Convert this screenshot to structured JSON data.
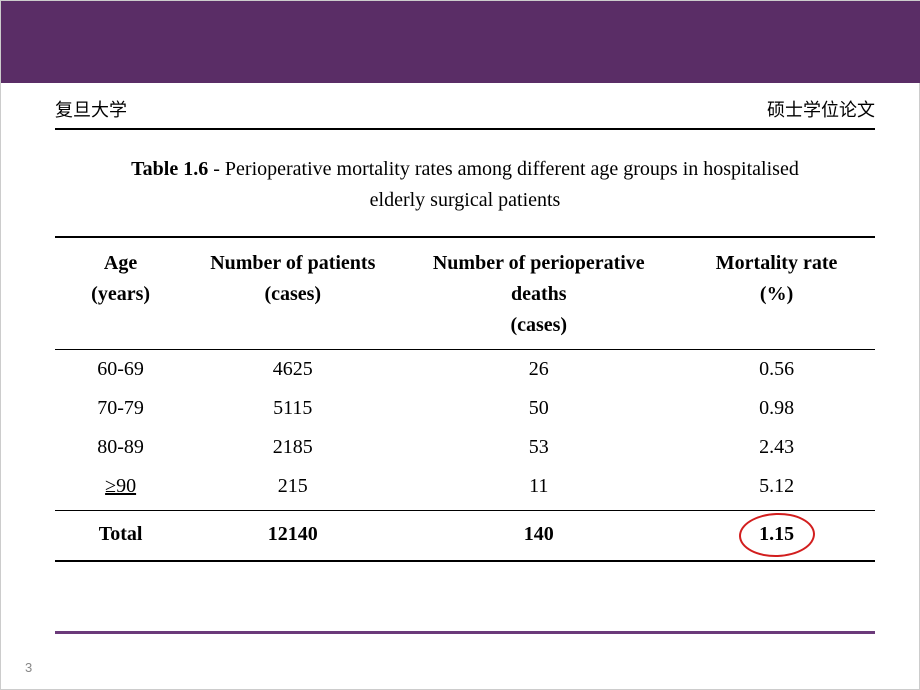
{
  "header": {
    "left": "复旦大学",
    "right": "硕士学位论文"
  },
  "caption": {
    "label": "Table 1.6",
    "sep": " - ",
    "text_line1": "Perioperative mortality rates among different age groups in hospitalised",
    "text_line2": "elderly surgical patients"
  },
  "columns": {
    "age": {
      "line1": "Age",
      "line2": "(years)"
    },
    "npat": {
      "line1": "Number of patients",
      "line2": "(cases)"
    },
    "death": {
      "line1": "Number of perioperative",
      "line2": "deaths",
      "line3": "(cases)"
    },
    "mort": {
      "line1": "Mortality rate",
      "line2": "(%)"
    }
  },
  "rows": [
    {
      "age": "60-69",
      "npat": "4625",
      "death": "26",
      "mort": "0.56"
    },
    {
      "age": "70-79",
      "npat": "5115",
      "death": "50",
      "mort": "0.98"
    },
    {
      "age": "80-89",
      "npat": "2185",
      "death": "53",
      "mort": "2.43"
    },
    {
      "age": "≥90",
      "npat": "215",
      "death": "11",
      "mort": "5.12"
    }
  ],
  "total": {
    "age": "Total",
    "npat": "12140",
    "death": "140",
    "mort": "1.15"
  },
  "page_number": "3",
  "colors": {
    "top_band": "#5a2d66",
    "circle": "#d21e1e",
    "footer_line": "#6b3a7a",
    "text": "#000000",
    "background": "#ffffff"
  }
}
